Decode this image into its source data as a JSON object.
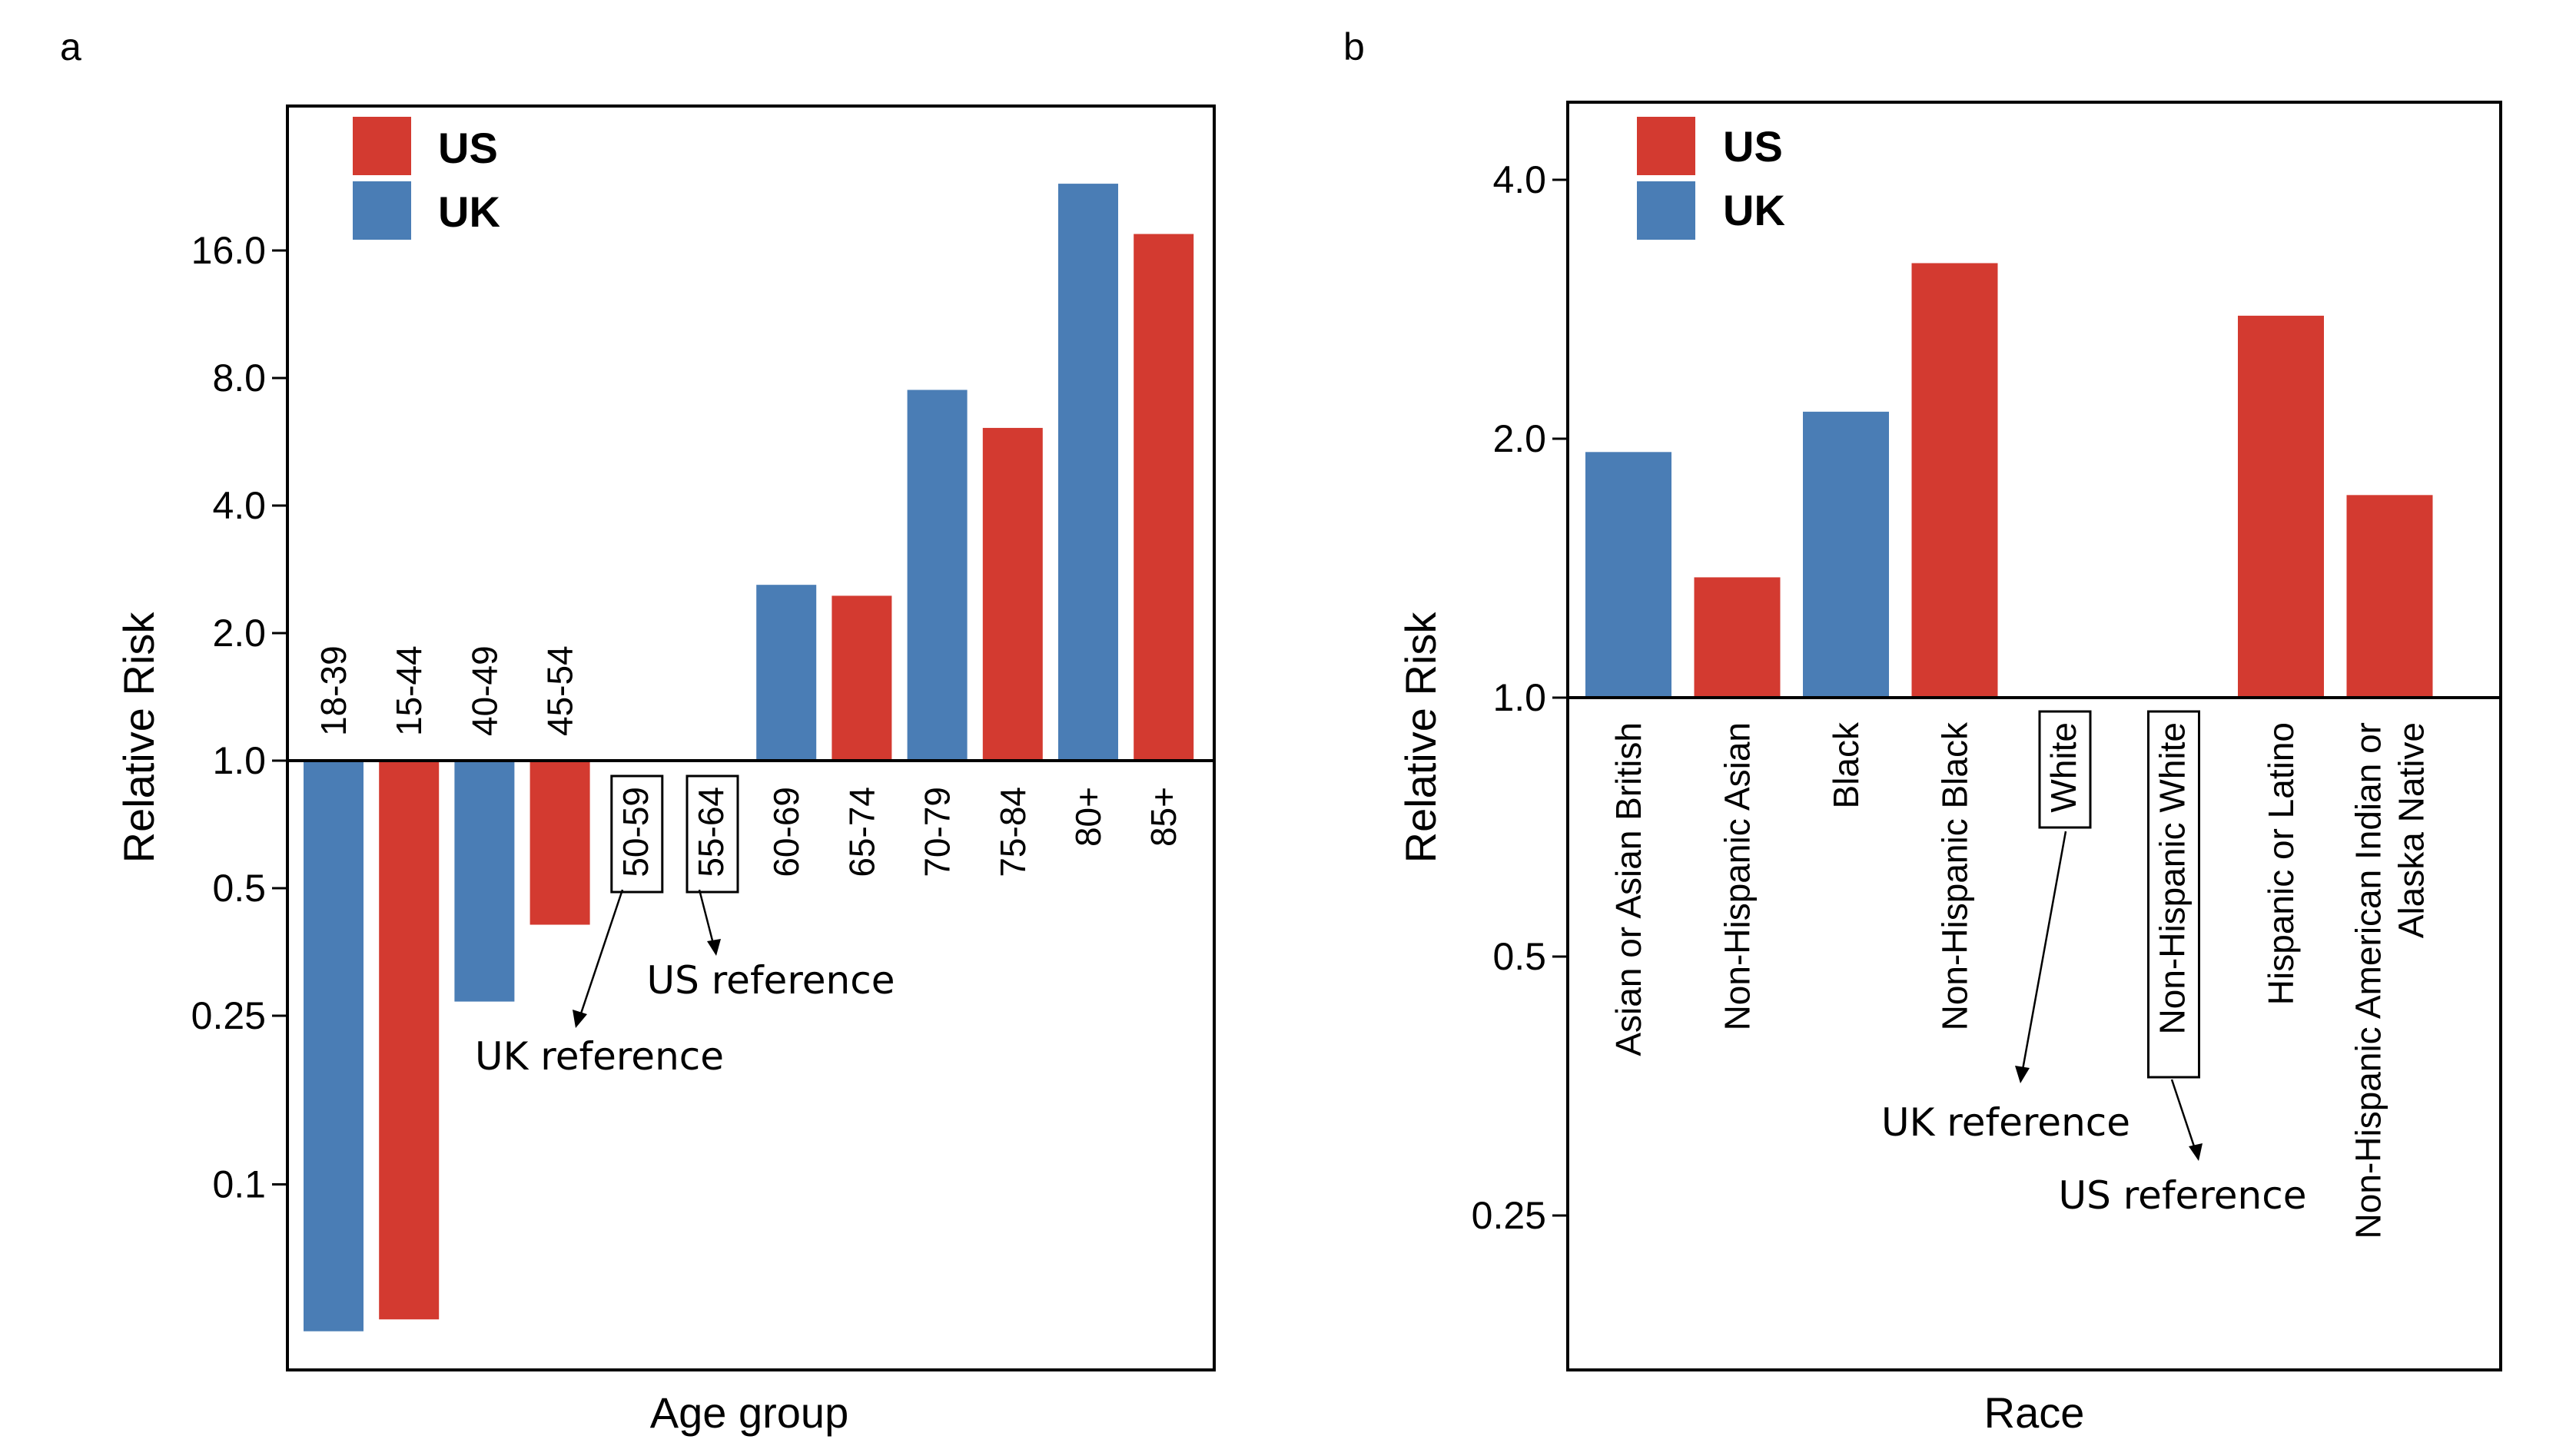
{
  "colors": {
    "US": "#d33a30",
    "UK": "#4a7db5"
  },
  "chart_data": [
    {
      "type": "bar",
      "panel_label": "a",
      "title": "",
      "xlabel": "Age group",
      "ylabel": "Relative Risk",
      "y_scale": "log",
      "yticks": [
        "0.1",
        "0.25",
        "0.5",
        "1.0",
        "2.0",
        "4.0",
        "8.0",
        "16.0"
      ],
      "ylim": [
        0.042,
        30
      ],
      "baseline": 1.0,
      "legend": {
        "placement": "top-left",
        "entries": [
          "US",
          "UK"
        ]
      },
      "bars": [
        {
          "label": "18-39",
          "series": "UK",
          "value": 0.045
        },
        {
          "label": "15-44",
          "series": "US",
          "value": 0.048
        },
        {
          "label": "40-49",
          "series": "UK",
          "value": 0.27
        },
        {
          "label": "45-54",
          "series": "US",
          "value": 0.41
        },
        {
          "label": "50-59",
          "series": "UK",
          "value": 1.0,
          "reference": true
        },
        {
          "label": "55-64",
          "series": "US",
          "value": 1.0,
          "reference": true
        },
        {
          "label": "60-69",
          "series": "UK",
          "value": 2.6
        },
        {
          "label": "65-74",
          "series": "US",
          "value": 2.45
        },
        {
          "label": "70-79",
          "series": "UK",
          "value": 7.5
        },
        {
          "label": "75-84",
          "series": "US",
          "value": 6.1
        },
        {
          "label": "80+",
          "series": "UK",
          "value": 23
        },
        {
          "label": "85+",
          "series": "US",
          "value": 17.5
        }
      ],
      "annotations": [
        "UK reference",
        "US reference"
      ]
    },
    {
      "type": "bar",
      "panel_label": "b",
      "title": "",
      "xlabel": "Race",
      "ylabel": "Relative Risk",
      "y_scale": "log",
      "yticks": [
        "0.25",
        "0.5",
        "1.0",
        "2.0",
        "4.0"
      ],
      "ylim": [
        0.2,
        4.6
      ],
      "baseline": 1.0,
      "legend": {
        "placement": "top-left",
        "entries": [
          "US",
          "UK"
        ]
      },
      "bars": [
        {
          "label": "Asian or Asian British",
          "series": "UK",
          "value": 1.93
        },
        {
          "label": "Non-Hispanic Asian",
          "series": "US",
          "value": 1.38
        },
        {
          "label": "Black",
          "series": "UK",
          "value": 2.15
        },
        {
          "label": "Non-Hispanic Black",
          "series": "US",
          "value": 3.2
        },
        {
          "label": "White",
          "series": "UK",
          "value": 1.0,
          "reference": true
        },
        {
          "label": "Non-Hispanic White",
          "series": "US",
          "value": 1.0,
          "reference": true
        },
        {
          "label": "Hispanic or Latino",
          "series": "US",
          "value": 2.78
        },
        {
          "label": "Non-Hispanic American Indian or|Alaska Native",
          "series": "US",
          "value": 1.72
        }
      ],
      "annotations": [
        "UK reference",
        "US reference"
      ]
    }
  ]
}
